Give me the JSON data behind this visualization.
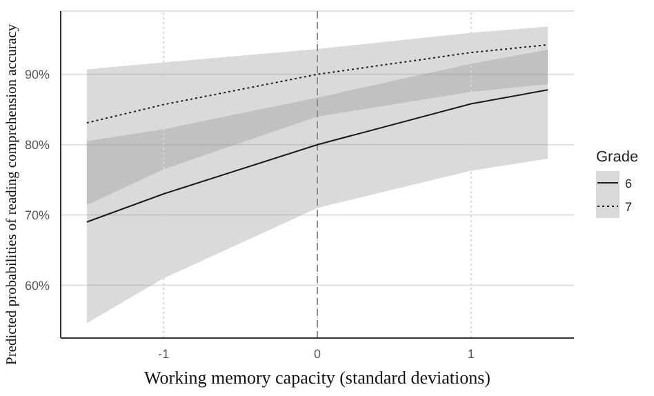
{
  "chart_data": {
    "type": "line",
    "xlabel": "Working memory capacity (standard deviations)",
    "ylabel": "Predicted probabilities of reading comprehension accuracy",
    "legend_title": "Grade",
    "x": [
      -1.5,
      -1,
      0,
      1,
      1.5
    ],
    "series": [
      {
        "name": "6",
        "color": "#1a1a1a",
        "line_style": "solid",
        "values": [
          69,
          73,
          80,
          85.8,
          87.8
        ],
        "lower": [
          54.6,
          61,
          71,
          76.3,
          78
        ],
        "upper": [
          80.5,
          82.2,
          86.7,
          91.5,
          93.5
        ]
      },
      {
        "name": "7",
        "color": "#1a1a1a",
        "line_style": "dotted",
        "values": [
          83.1,
          85.7,
          90,
          93.1,
          94.2
        ],
        "lower": [
          71.4,
          76.5,
          84,
          87.5,
          88.6
        ],
        "upper": [
          90.7,
          91.7,
          93.6,
          95.9,
          96.8
        ]
      }
    ],
    "xlim": [
      -1.67,
      1.67
    ],
    "xticks": [
      -1,
      0,
      1
    ],
    "ylim": [
      52.5,
      99
    ],
    "yticks": [
      {
        "value": 60,
        "label": "60%"
      },
      {
        "value": 70,
        "label": "70%"
      },
      {
        "value": 80,
        "label": "80%"
      },
      {
        "value": 90,
        "label": "90%"
      }
    ],
    "grid": true,
    "legend": "right",
    "marker": "none",
    "ref_lines": [
      {
        "axis": "x",
        "value": 0,
        "color": "#8c8c8c",
        "line_style": "dashed"
      }
    ]
  }
}
